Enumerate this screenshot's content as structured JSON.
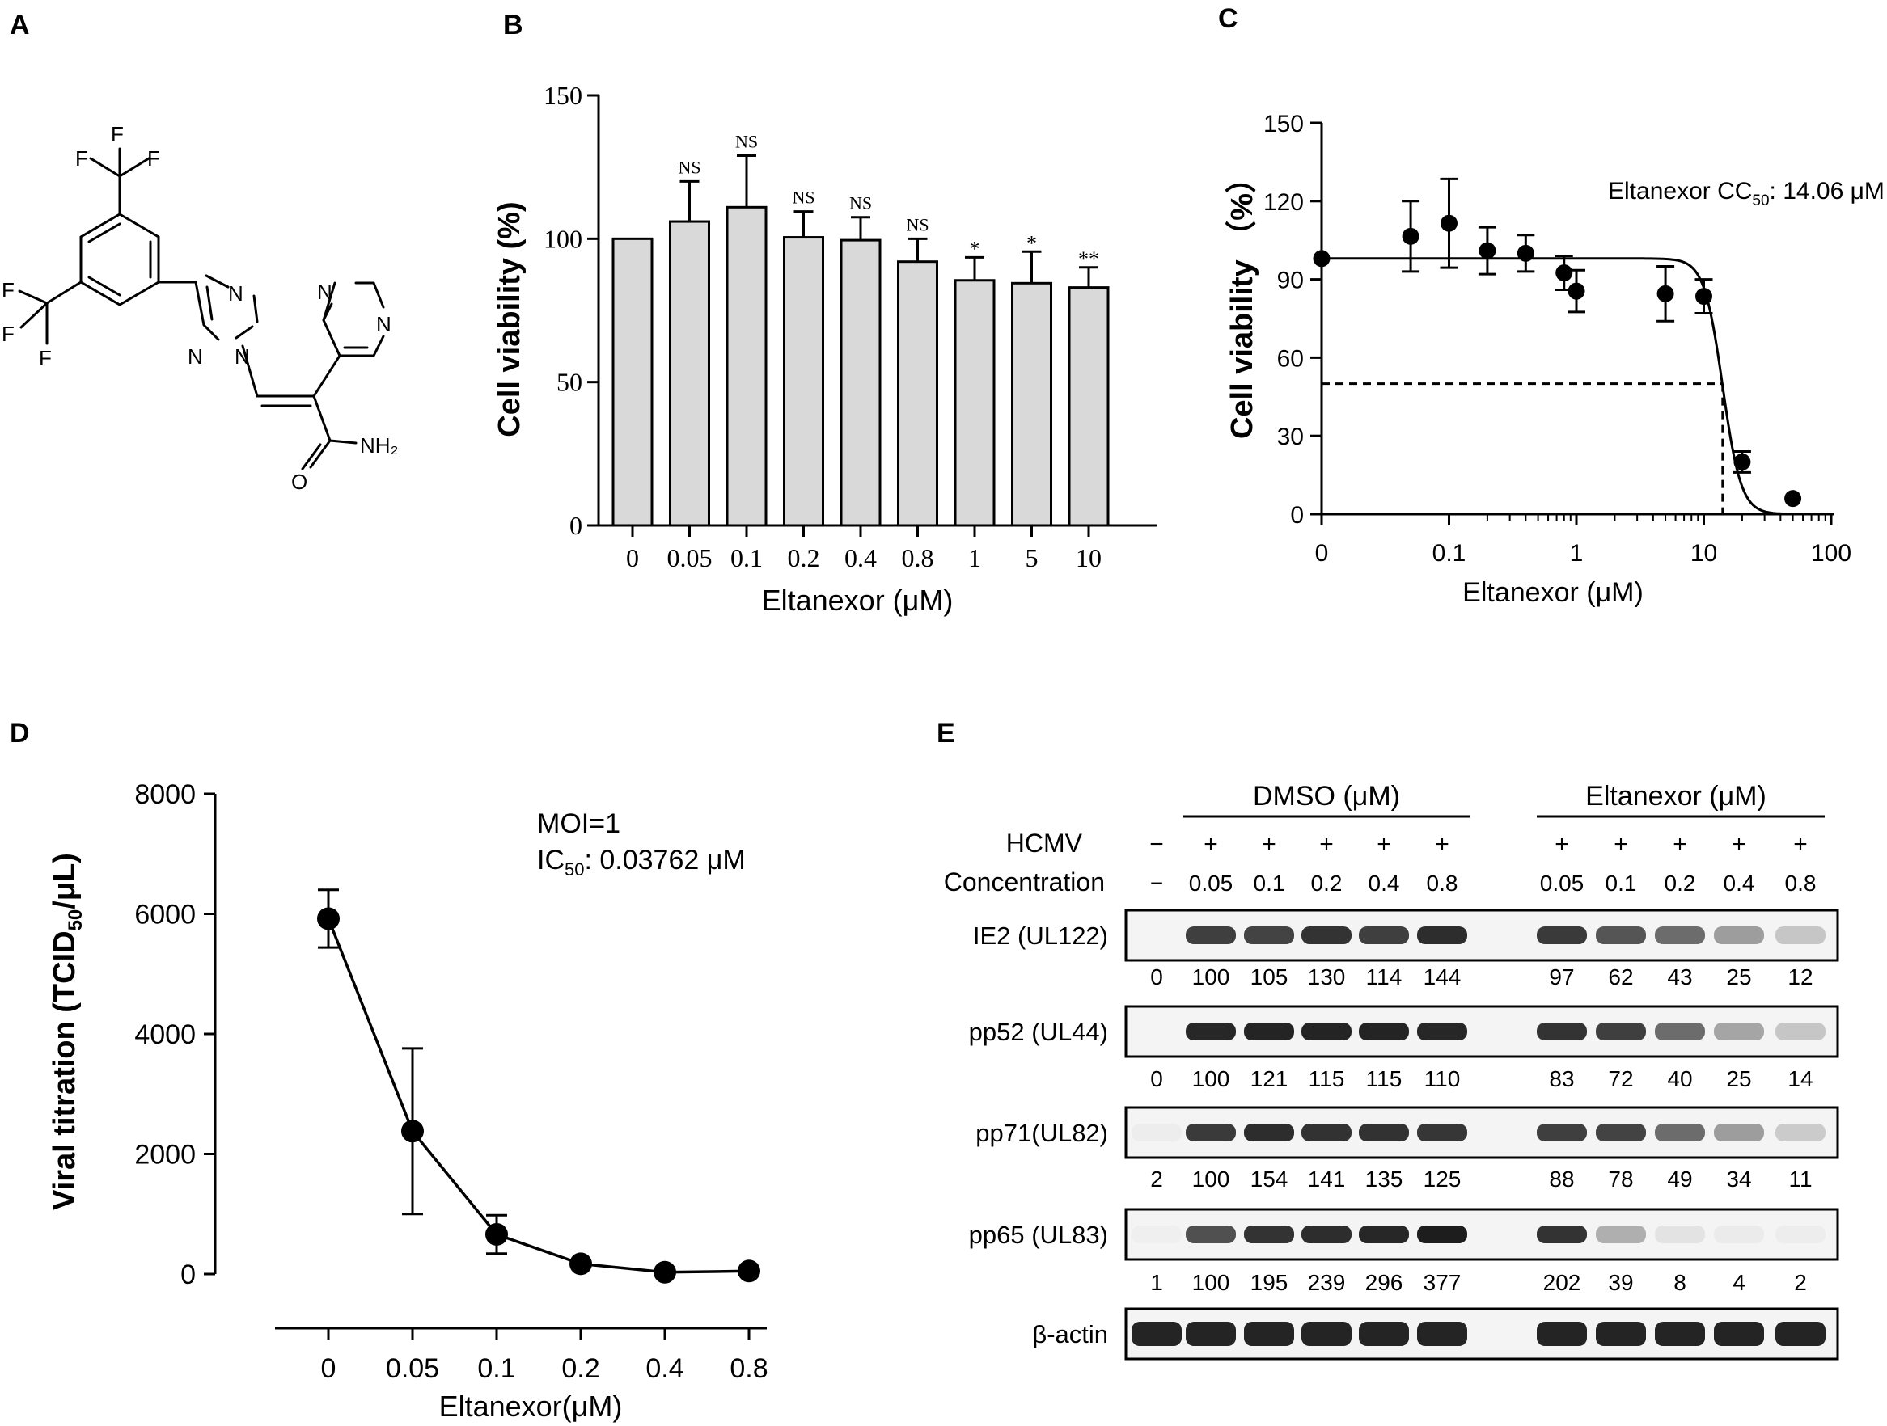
{
  "figure": {
    "panel_labels": [
      "A",
      "B",
      "C",
      "D",
      "E"
    ]
  },
  "panel_a": {
    "atoms": {
      "f1": "F",
      "f2": "F",
      "f3": "F",
      "f4": "F",
      "f5": "F",
      "f6": "F",
      "n_tri1": "N",
      "n_tri2": "N",
      "n_tri3": "N",
      "n_pyr1": "N",
      "n_pyr2": "N",
      "o": "O",
      "nh2": "NH₂"
    }
  },
  "chart_data": [
    {
      "panel": "B",
      "type": "bar",
      "ylabel": "Cell viability  (%)",
      "xlabel": "Eltanexor (μM)",
      "ylim": [
        0,
        150
      ],
      "yticks": [
        0,
        50,
        100,
        150
      ],
      "categories": [
        "0",
        "0.05",
        "0.1",
        "0.2",
        "0.4",
        "0.8",
        "1",
        "5",
        "10"
      ],
      "values": [
        100,
        106,
        111,
        100.5,
        99.5,
        92,
        85.5,
        84.5,
        83
      ],
      "errors": [
        0,
        14,
        18,
        9,
        8,
        8,
        8,
        11,
        7
      ],
      "significance": [
        "",
        "NS",
        "NS",
        "NS",
        "NS",
        "NS",
        "*",
        "*",
        "**"
      ],
      "bar_color": "#d9d9d9"
    },
    {
      "panel": "C",
      "type": "scatter",
      "ylabel": "Cell viability （%）",
      "xlabel": "Eltanexor (μM)",
      "ylim": [
        0,
        150
      ],
      "yticks": [
        0,
        30,
        60,
        90,
        120,
        150
      ],
      "xscale": "log",
      "xticks": [
        "0",
        "0.1",
        "1",
        "10",
        "100"
      ],
      "annotation_prefix": "Eltanexor CC",
      "annotation_sub": "50",
      "annotation_suffix": ": 14.06 μM",
      "cc50": 14.06,
      "points": [
        {
          "x": 0,
          "y": 98,
          "err": 0
        },
        {
          "x": 0.05,
          "y": 106.5,
          "err": 13.5
        },
        {
          "x": 0.1,
          "y": 111.5,
          "err": 17
        },
        {
          "x": 0.2,
          "y": 101,
          "err": 9
        },
        {
          "x": 0.4,
          "y": 100,
          "err": 7
        },
        {
          "x": 0.8,
          "y": 92.5,
          "err": 6.5
        },
        {
          "x": 1,
          "y": 85.5,
          "err": 8
        },
        {
          "x": 5,
          "y": 84.5,
          "err": 10.5
        },
        {
          "x": 10,
          "y": 83.5,
          "err": 6.5
        },
        {
          "x": 20,
          "y": 20,
          "err": 4
        },
        {
          "x": 50,
          "y": 6,
          "err": 0
        }
      ],
      "fit": {
        "top": 98,
        "bottom": 0,
        "ec50": 14.06,
        "hill": 6
      }
    },
    {
      "panel": "D",
      "type": "line",
      "ylabel_prefix": "Viral titration (TCID",
      "ylabel_sub": "50",
      "ylabel_suffix": "/μL)",
      "xlabel": "Eltanexor(μM)",
      "ylim": [
        0,
        8000
      ],
      "yticks": [
        0,
        2000,
        4000,
        6000,
        8000
      ],
      "categories": [
        "0",
        "0.05",
        "0.1",
        "0.2",
        "0.4",
        "0.8"
      ],
      "values": [
        5920,
        2380,
        660,
        170,
        30,
        50
      ],
      "errors": [
        480,
        1380,
        320,
        0,
        0,
        0
      ],
      "annotation_moi": "MOI=1",
      "annotation_ic_prefix": "IC",
      "annotation_ic_sub": "50",
      "annotation_ic_suffix": ": 0.03762 μM"
    }
  ],
  "panel_e": {
    "group_dmso": "DMSO (μM)",
    "group_eltanexor": "Eltanexor (μM)",
    "hcmv_label": "HCMV",
    "concentration_label": "Concentration",
    "hcmv": [
      "−",
      "+",
      "+",
      "+",
      "+",
      "+",
      "+",
      "+",
      "+",
      "+",
      "+"
    ],
    "concentrations": [
      "−",
      "0.05",
      "0.1",
      "0.2",
      "0.4",
      "0.8",
      "0.05",
      "0.1",
      "0.2",
      "0.4",
      "0.8"
    ],
    "blots": [
      {
        "label": "IE2 (UL122)",
        "values": [
          "0",
          "100",
          "105",
          "130",
          "114",
          "144",
          "97",
          "62",
          "43",
          "25",
          "12"
        ],
        "intensity": [
          0,
          0.8,
          0.78,
          0.85,
          0.8,
          0.88,
          0.82,
          0.7,
          0.6,
          0.38,
          0.2
        ]
      },
      {
        "label": "pp52 (UL44)",
        "values": [
          "0",
          "100",
          "121",
          "115",
          "115",
          "110",
          "83",
          "72",
          "40",
          "25",
          "14"
        ],
        "intensity": [
          0,
          0.9,
          0.92,
          0.92,
          0.92,
          0.9,
          0.85,
          0.8,
          0.6,
          0.35,
          0.2
        ]
      },
      {
        "label": "pp71(UL82)",
        "values": [
          "2",
          "100",
          "154",
          "141",
          "135",
          "125",
          "88",
          "78",
          "49",
          "34",
          "11"
        ],
        "intensity": [
          0.03,
          0.82,
          0.88,
          0.86,
          0.86,
          0.84,
          0.8,
          0.78,
          0.6,
          0.38,
          0.18
        ]
      },
      {
        "label": "pp65 (UL83)",
        "values": [
          "1",
          "100",
          "195",
          "239",
          "296",
          "377",
          "202",
          "39",
          "8",
          "4",
          "2"
        ],
        "intensity": [
          0.02,
          0.72,
          0.85,
          0.88,
          0.9,
          0.95,
          0.85,
          0.3,
          0.07,
          0.04,
          0.03
        ]
      },
      {
        "label": "β-actin",
        "values": [],
        "intensity": [
          0.92,
          0.92,
          0.92,
          0.92,
          0.92,
          0.92,
          0.92,
          0.92,
          0.92,
          0.92,
          0.92
        ]
      }
    ]
  }
}
